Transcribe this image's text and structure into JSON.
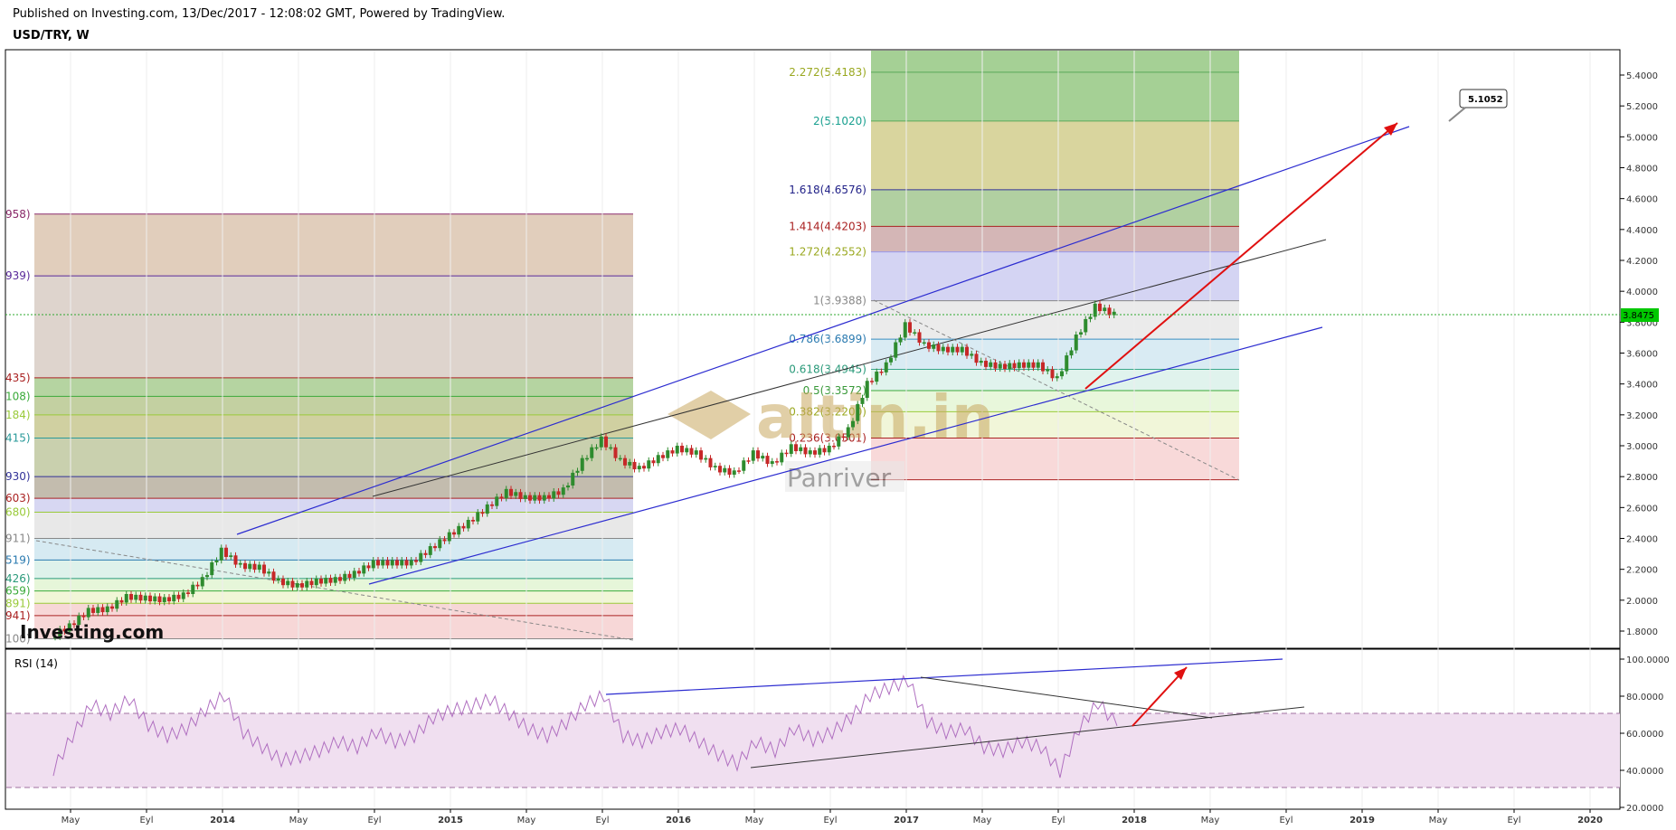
{
  "header": {
    "published": "Published on Investing.com, 13/Dec/2017 - 12:08:02 GMT, Powered by TradingView.",
    "symbol": "USD/TRY, W"
  },
  "colors": {
    "bull": "#2e8b2e",
    "bear": "#c62828",
    "channel": "#2c2cd0",
    "arrow": "#e01010",
    "rsi_line": "#b070c0",
    "rsi_band": "#f0dff0",
    "current_price_bg": "#00c800"
  },
  "chart_data": [
    {
      "type": "candlestick",
      "title": "USD/TRY, W",
      "y_axis": {
        "ticks": [
          "5.4000",
          "5.2000",
          "5.0000",
          "4.8000",
          "4.6000",
          "4.4000",
          "4.2000",
          "4.0000",
          "3.8000",
          "3.6000",
          "3.4000",
          "3.2000",
          "3.0000",
          "2.8000",
          "2.6000",
          "2.4000",
          "2.2000",
          "2.0000",
          "1.8000"
        ],
        "range": [
          1.68,
          5.6
        ]
      },
      "x_axis": {
        "ticks": [
          "May",
          "Eyl",
          "2014",
          "May",
          "Eyl",
          "2015",
          "May",
          "Eyl",
          "2016",
          "May",
          "Eyl",
          "2017",
          "May",
          "Eyl",
          "2018",
          "May",
          "Eyl",
          "2019",
          "May",
          "Eyl",
          "2020"
        ]
      },
      "current_price": "3.8475",
      "annotation_callout": "5.1052",
      "watermark": {
        "brand": "altin.in",
        "sub": "Panriver"
      },
      "logo": "Investing.com",
      "fib_left_labels": [
        "958)",
        "939)",
        "435)",
        "108)",
        "184)",
        "415)",
        "930)",
        "603)",
        "680)",
        "911)",
        "519)",
        "426)",
        "659)",
        "891)",
        "941)",
        "100)"
      ],
      "fib_right_labels": [
        "2.272(5.4183)",
        "2(5.1020)",
        "1.618(4.6576)",
        "1.414(4.4203)",
        "1.272(4.2552)",
        "1(3.9388)",
        "0.786(3.6899)",
        "0.618(3.4945)",
        "0.5(3.3572)",
        "0.382(3.2200)",
        "0.236(3.0501)"
      ],
      "fib_right_levels": [
        5.4183,
        5.102,
        4.6576,
        4.4203,
        4.2552,
        3.9388,
        3.6899,
        3.4945,
        3.3572,
        3.22,
        3.0501,
        2.78
      ],
      "fib_left_levels": [
        4.5,
        4.1,
        3.44,
        3.32,
        3.2,
        3.05,
        2.8,
        2.66,
        2.57,
        2.4,
        2.26,
        2.14,
        2.06,
        1.98,
        1.9,
        1.75
      ],
      "price_path": [
        {
          "t": "2013-04",
          "v": 1.76
        },
        {
          "t": "2013-05",
          "v": 1.83
        },
        {
          "t": "2013-06",
          "v": 1.93
        },
        {
          "t": "2013-07",
          "v": 1.94
        },
        {
          "t": "2013-08",
          "v": 2.02
        },
        {
          "t": "2013-09",
          "v": 2.01
        },
        {
          "t": "2013-10",
          "v": 2.0
        },
        {
          "t": "2013-11",
          "v": 2.03
        },
        {
          "t": "2013-12",
          "v": 2.13
        },
        {
          "t": "2014-01",
          "v": 2.32
        },
        {
          "t": "2014-02",
          "v": 2.22
        },
        {
          "t": "2014-03",
          "v": 2.21
        },
        {
          "t": "2014-04",
          "v": 2.12
        },
        {
          "t": "2014-05",
          "v": 2.09
        },
        {
          "t": "2014-06",
          "v": 2.12
        },
        {
          "t": "2014-07",
          "v": 2.13
        },
        {
          "t": "2014-08",
          "v": 2.17
        },
        {
          "t": "2014-09",
          "v": 2.24
        },
        {
          "t": "2014-10",
          "v": 2.24
        },
        {
          "t": "2014-11",
          "v": 2.24
        },
        {
          "t": "2014-12",
          "v": 2.33
        },
        {
          "t": "2015-01",
          "v": 2.42
        },
        {
          "t": "2015-02",
          "v": 2.5
        },
        {
          "t": "2015-03",
          "v": 2.6
        },
        {
          "t": "2015-04",
          "v": 2.7
        },
        {
          "t": "2015-05",
          "v": 2.66
        },
        {
          "t": "2015-06",
          "v": 2.66
        },
        {
          "t": "2015-07",
          "v": 2.71
        },
        {
          "t": "2015-08",
          "v": 2.9
        },
        {
          "t": "2015-09",
          "v": 3.04
        },
        {
          "t": "2015-10",
          "v": 2.9
        },
        {
          "t": "2015-11",
          "v": 2.85
        },
        {
          "t": "2015-12",
          "v": 2.92
        },
        {
          "t": "2016-01",
          "v": 2.98
        },
        {
          "t": "2016-02",
          "v": 2.95
        },
        {
          "t": "2016-03",
          "v": 2.85
        },
        {
          "t": "2016-04",
          "v": 2.82
        },
        {
          "t": "2016-05",
          "v": 2.95
        },
        {
          "t": "2016-06",
          "v": 2.88
        },
        {
          "t": "2016-07",
          "v": 2.99
        },
        {
          "t": "2016-08",
          "v": 2.95
        },
        {
          "t": "2016-09",
          "v": 2.98
        },
        {
          "t": "2016-10",
          "v": 3.1
        },
        {
          "t": "2016-11",
          "v": 3.4
        },
        {
          "t": "2016-12",
          "v": 3.52
        },
        {
          "t": "2017-01",
          "v": 3.78
        },
        {
          "t": "2017-02",
          "v": 3.65
        },
        {
          "t": "2017-03",
          "v": 3.62
        },
        {
          "t": "2017-04",
          "v": 3.62
        },
        {
          "t": "2017-05",
          "v": 3.53
        },
        {
          "t": "2017-06",
          "v": 3.51
        },
        {
          "t": "2017-07",
          "v": 3.52
        },
        {
          "t": "2017-08",
          "v": 3.52
        },
        {
          "t": "2017-09",
          "v": 3.43
        },
        {
          "t": "2017-10",
          "v": 3.7
        },
        {
          "t": "2017-11",
          "v": 3.9
        },
        {
          "t": "2017-12",
          "v": 3.8475
        }
      ]
    },
    {
      "type": "line",
      "title": "RSI (14)",
      "y_axis": {
        "ticks": [
          "100.0000",
          "80.0000",
          "60.0000",
          "40.0000",
          "20.0000"
        ],
        "range": [
          20,
          100
        ]
      },
      "bands": [
        30,
        70
      ],
      "series": [
        {
          "values": [
            {
              "t": "2013-04",
              "v": 40
            },
            {
              "t": "2013-05",
              "v": 58
            },
            {
              "t": "2013-06",
              "v": 75
            },
            {
              "t": "2013-07",
              "v": 70
            },
            {
              "t": "2013-08",
              "v": 78
            },
            {
              "t": "2013-09",
              "v": 64
            },
            {
              "t": "2013-10",
              "v": 58
            },
            {
              "t": "2013-11",
              "v": 62
            },
            {
              "t": "2013-12",
              "v": 72
            },
            {
              "t": "2014-01",
              "v": 80
            },
            {
              "t": "2014-02",
              "v": 60
            },
            {
              "t": "2014-03",
              "v": 52
            },
            {
              "t": "2014-04",
              "v": 45
            },
            {
              "t": "2014-05",
              "v": 47
            },
            {
              "t": "2014-06",
              "v": 50
            },
            {
              "t": "2014-07",
              "v": 55
            },
            {
              "t": "2014-08",
              "v": 52
            },
            {
              "t": "2014-09",
              "v": 60
            },
            {
              "t": "2014-10",
              "v": 55
            },
            {
              "t": "2014-11",
              "v": 58
            },
            {
              "t": "2014-12",
              "v": 68
            },
            {
              "t": "2015-01",
              "v": 72
            },
            {
              "t": "2015-02",
              "v": 74
            },
            {
              "t": "2015-03",
              "v": 78
            },
            {
              "t": "2015-04",
              "v": 70
            },
            {
              "t": "2015-05",
              "v": 62
            },
            {
              "t": "2015-06",
              "v": 58
            },
            {
              "t": "2015-07",
              "v": 65
            },
            {
              "t": "2015-08",
              "v": 75
            },
            {
              "t": "2015-09",
              "v": 80
            },
            {
              "t": "2015-10",
              "v": 58
            },
            {
              "t": "2015-11",
              "v": 55
            },
            {
              "t": "2015-12",
              "v": 60
            },
            {
              "t": "2016-01",
              "v": 62
            },
            {
              "t": "2016-02",
              "v": 55
            },
            {
              "t": "2016-03",
              "v": 48
            },
            {
              "t": "2016-04",
              "v": 43
            },
            {
              "t": "2016-05",
              "v": 55
            },
            {
              "t": "2016-06",
              "v": 50
            },
            {
              "t": "2016-07",
              "v": 62
            },
            {
              "t": "2016-08",
              "v": 56
            },
            {
              "t": "2016-09",
              "v": 60
            },
            {
              "t": "2016-10",
              "v": 68
            },
            {
              "t": "2016-11",
              "v": 80
            },
            {
              "t": "2016-12",
              "v": 84
            },
            {
              "t": "2017-01",
              "v": 88
            },
            {
              "t": "2017-02",
              "v": 66
            },
            {
              "t": "2017-03",
              "v": 60
            },
            {
              "t": "2017-04",
              "v": 62
            },
            {
              "t": "2017-05",
              "v": 52
            },
            {
              "t": "2017-06",
              "v": 50
            },
            {
              "t": "2017-07",
              "v": 55
            },
            {
              "t": "2017-08",
              "v": 52
            },
            {
              "t": "2017-09",
              "v": 39
            },
            {
              "t": "2017-10",
              "v": 62
            },
            {
              "t": "2017-11",
              "v": 76
            },
            {
              "t": "2017-12",
              "v": 64
            }
          ]
        }
      ]
    }
  ]
}
